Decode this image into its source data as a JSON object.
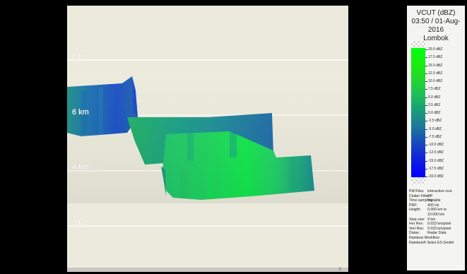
{
  "altitude_labels": [
    "8 km",
    "6 km",
    "4 km",
    "2 km"
  ],
  "bottom_number": "0",
  "panel": {
    "title": "VCUT (dBZ)",
    "datetime": "03:50 / 01-Aug-2016",
    "location": "Lombok"
  },
  "legend": {
    "labels": [
      "20.0 dBZ",
      "17.5 dBZ",
      "15.0 dBZ",
      "12.5 dBZ",
      "10.0 dBZ",
      "7.5 dBZ",
      "5.0 dBZ",
      "2.5 dBZ",
      "0.0 dBZ",
      "-2.5 dBZ",
      "-5.0 dBZ",
      "-7.5 dBZ",
      "-10.0 dBZ",
      "-12.5 dBZ",
      "-15.0 dBZ",
      "-17.5 dBZ",
      "-20.0 dBZ"
    ]
  },
  "info": {
    "rows": [
      {
        "key": "Pdf Files:",
        "value": "interactive vcut"
      },
      {
        "key": "Clutter Filter:",
        "value": "Off"
      },
      {
        "key": "Time sampling:",
        "value": "Variable"
      },
      {
        "key": "PRF:",
        "value": "400 Hz"
      },
      {
        "key": "Height:",
        "value": "0.000 km to"
      },
      {
        "key": "",
        "value": "10.000 km"
      },
      {
        "key": "Step size:",
        "value": "9 km"
      },
      {
        "key": "Hor Res:",
        "value": "0.023 km/pixel"
      },
      {
        "key": "Vert Res:",
        "value": "0.033 km/pixel"
      },
      {
        "key": "Datas:",
        "value": "Radar Data"
      }
    ],
    "footer1": "Rainbow Workflow",
    "footer2": "Rainbow® Selex ES GmbH"
  },
  "colors": {
    "background": "#000000",
    "plot_background": "#eceadc",
    "gridline": "#ffffff",
    "echo_green": "#1fd850",
    "echo_blue": "#1d6ea6"
  }
}
